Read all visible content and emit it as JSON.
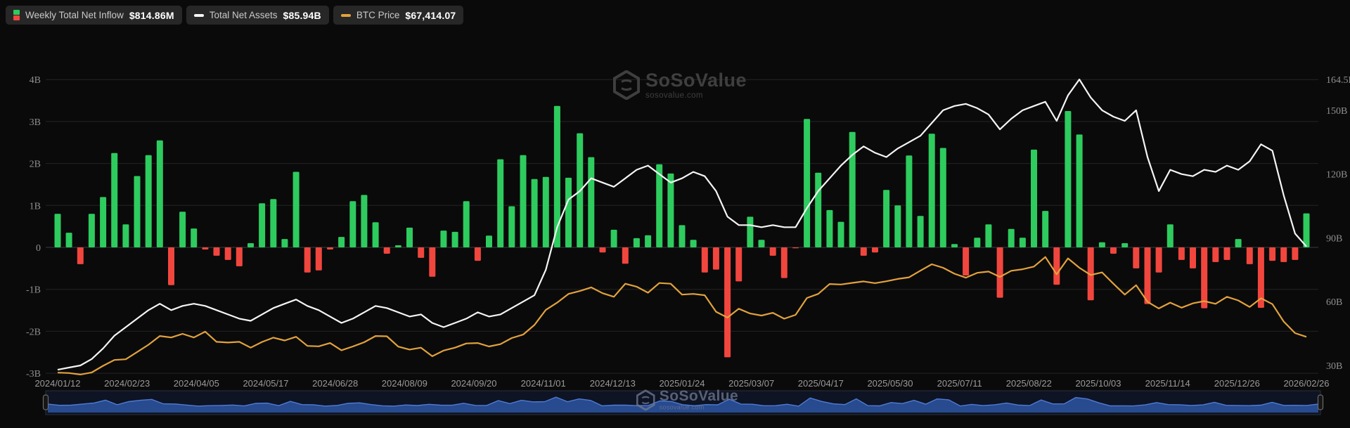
{
  "legend": [
    {
      "label": "Weekly Total Net Inflow",
      "value": "$814.86M",
      "icon": "bar-green-red"
    },
    {
      "label": "Total Net Assets",
      "value": "$85.94B",
      "icon": "white-dash"
    },
    {
      "label": "BTC Price",
      "value": "$67,414.07",
      "icon": "orange-dash"
    }
  ],
  "watermark": {
    "title": "SoSoValue",
    "domain": "sosovalue.com"
  },
  "colors": {
    "background": "#0a0a0a",
    "bar_positive": "#2ecb5e",
    "bar_negative": "#f1463e",
    "assets_line": "#f5f5f5",
    "btc_line": "#e2a23c",
    "gridline": "#242424",
    "zero_line": "#3c3c3c",
    "axis_text": "#8f8f8f",
    "nav_fill": "#2a4d93",
    "nav_stroke": "#4f7cd4",
    "nav_track": "#0e1424",
    "nav_handle": "#161616",
    "nav_handle_border": "#6b6b6b"
  },
  "chart_data": {
    "type": "combo",
    "x_start": "2024/01/12",
    "x_end": "2026/02/26",
    "x_step": "weekly",
    "x_tick_labels": [
      "2024/01/12",
      "2024/02/23",
      "2024/04/05",
      "2024/05/17",
      "2024/06/28",
      "2024/08/09",
      "2024/09/20",
      "2024/11/01",
      "2024/12/13",
      "2025/01/24",
      "2025/03/07",
      "2025/04/17",
      "2025/05/30",
      "2025/07/11",
      "2025/08/22",
      "2025/10/03",
      "2025/11/14",
      "2025/12/26",
      "2026/02/26"
    ],
    "left_axis": {
      "ticks": [
        "4B",
        "3B",
        "2B",
        "1B",
        "0",
        "-1B",
        "-2B",
        "-3B"
      ],
      "values": [
        4,
        3,
        2,
        1,
        0,
        -1,
        -2,
        -3
      ],
      "range": [
        -3,
        4
      ]
    },
    "right_axis": {
      "ticks": [
        "164.5B",
        "150B",
        "120B",
        "90B",
        "60B",
        "30B"
      ],
      "values": [
        164.5,
        150,
        120,
        90,
        60,
        30
      ],
      "range": [
        30,
        164.5
      ]
    },
    "grid": "horizontal-left-axis-only",
    "legend_position": "top-left",
    "series": [
      {
        "name": "Weekly Total Net Inflow",
        "type": "bar",
        "unit": "$B",
        "axis": "left",
        "values": [
          0.8,
          0.35,
          -0.4,
          0.8,
          1.2,
          2.25,
          0.55,
          1.7,
          2.2,
          2.55,
          -0.9,
          0.85,
          0.45,
          -0.05,
          -0.2,
          -0.3,
          -0.45,
          0.1,
          1.05,
          1.15,
          0.2,
          1.8,
          -0.6,
          -0.55,
          -0.05,
          0.25,
          1.1,
          1.25,
          0.6,
          -0.15,
          0.05,
          0.47,
          -0.25,
          -0.7,
          0.4,
          0.37,
          1.1,
          -0.32,
          0.28,
          2.1,
          0.98,
          2.2,
          1.63,
          1.68,
          3.37,
          1.66,
          2.72,
          2.15,
          -0.12,
          0.42,
          -0.39,
          0.22,
          0.29,
          1.98,
          1.76,
          0.53,
          0.18,
          -0.6,
          -0.53,
          -2.62,
          -0.81,
          0.73,
          0.18,
          -0.2,
          -0.73,
          -0.02,
          3.06,
          1.78,
          0.89,
          0.61,
          2.75,
          -0.2,
          -0.12,
          1.37,
          1.0,
          2.19,
          0.75,
          2.71,
          2.37,
          0.08,
          -0.67,
          0.23,
          0.55,
          -1.2,
          0.44,
          0.23,
          2.33,
          0.87,
          -0.89,
          3.25,
          2.69,
          -1.26,
          0.12,
          -0.15,
          0.1,
          -0.5,
          -1.35,
          -0.6,
          0.55,
          -0.3,
          -0.5,
          -1.45,
          -0.35,
          -0.3,
          0.2,
          -0.4,
          -1.44,
          -0.32,
          -0.35,
          -0.3,
          0.81
        ]
      },
      {
        "name": "Total Net Assets",
        "type": "line",
        "unit": "$B",
        "axis": "right",
        "values": [
          28,
          29,
          30,
          33,
          38,
          44,
          48,
          52,
          56,
          59,
          56,
          58,
          59,
          58,
          56,
          54,
          52,
          51,
          54,
          57,
          59,
          61,
          58,
          56,
          53,
          50,
          52,
          55,
          58,
          57,
          55,
          53,
          54,
          50,
          48,
          50,
          52,
          55,
          53,
          54,
          57,
          60,
          63,
          75,
          95,
          108,
          112,
          118,
          116,
          114,
          118,
          122,
          124,
          120,
          116,
          118,
          121,
          119,
          112,
          100,
          96,
          96,
          95,
          96,
          95,
          95,
          104,
          112,
          118,
          124,
          129,
          133,
          130,
          128,
          132,
          135,
          138,
          144,
          150,
          152,
          153,
          151,
          148,
          141,
          146,
          150,
          152,
          154,
          145,
          157,
          164.5,
          156,
          150,
          147,
          145,
          150,
          128,
          112,
          122,
          120,
          119,
          122,
          121,
          124,
          122,
          126,
          134,
          131,
          110,
          92,
          85.94
        ]
      },
      {
        "name": "BTC Price",
        "type": "line",
        "unit": "$K",
        "axis": "hidden",
        "render_range": [
          40,
          130
        ],
        "values": [
          42.8,
          42.5,
          41.5,
          42.9,
          47.5,
          51.5,
          52.0,
          57.0,
          62.0,
          68.0,
          67.0,
          69.5,
          67.0,
          71.0,
          64.0,
          63.5,
          64.0,
          60.0,
          63.9,
          66.9,
          64.9,
          67.5,
          61.2,
          60.9,
          63.2,
          58.2,
          60.8,
          63.7,
          68.0,
          67.8,
          60.7,
          58.7,
          60.0,
          54.1,
          58.0,
          60.0,
          62.9,
          63.2,
          60.8,
          62.4,
          66.6,
          69.0,
          75.6,
          86.0,
          91.0,
          97.0,
          99.0,
          101.5,
          97.5,
          95.0,
          104.0,
          102.0,
          97.8,
          104.5,
          104.0,
          96.5,
          97.0,
          96.1,
          84.7,
          80.7,
          86.8,
          83.5,
          82.1,
          84.0,
          79.9,
          82.6,
          94.2,
          97.0,
          103.8,
          103.5,
          104.6,
          105.6,
          104.4,
          105.7,
          107.3,
          108.4,
          113.0,
          117.4,
          115.0,
          110.9,
          108.2,
          111.5,
          112.4,
          108.7,
          112.9,
          114.0,
          115.8,
          122.4,
          110.5,
          121.5,
          115.0,
          110.0,
          111.8,
          104.0,
          96.5,
          103.0,
          91.6,
          87.0,
          91.0,
          87.5,
          90.5,
          92.0,
          90.2,
          95.0,
          92.5,
          88.0,
          94.0,
          90.0,
          78.0,
          70.0,
          67.414
        ]
      }
    ]
  },
  "navigator": {
    "full_range_shown": true,
    "handles": [
      "left",
      "right"
    ]
  }
}
